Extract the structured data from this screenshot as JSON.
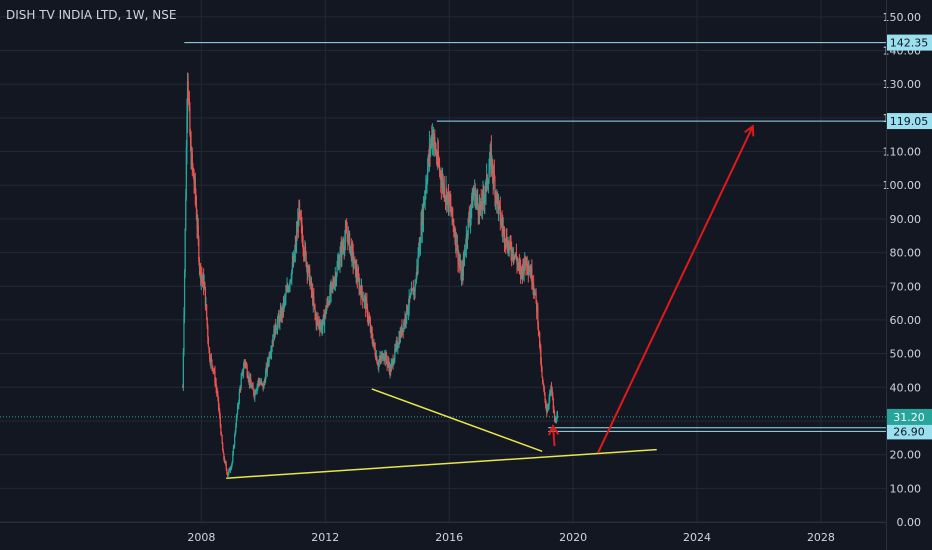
{
  "header": {
    "title": "DISH TV INDIA LTD, 1W, NSE"
  },
  "colors": {
    "background": "#131722",
    "grid": "#232834",
    "text": "#d1d4dc",
    "up": "#26a69a",
    "down": "#ef5350",
    "level": "#9be0ef",
    "trend": "#e8e64a",
    "arrow": "#e01a1a",
    "label_bg": "#9be0ef",
    "label_text": "#131722"
  },
  "chart_data": {
    "type": "candlestick",
    "title": "DISH TV INDIA LTD, 1W, NSE",
    "y_ticks": [
      "150.00",
      "140.00",
      "130.00",
      "120.00",
      "110.00",
      "100.00",
      "90.00",
      "80.00",
      "70.00",
      "60.00",
      "50.00",
      "40.00",
      "30.00",
      "20.00",
      "10.00",
      "0.00"
    ],
    "y_tick_values": [
      150,
      140,
      130,
      120,
      110,
      100,
      90,
      80,
      70,
      60,
      50,
      40,
      30,
      20,
      10,
      0
    ],
    "x_ticks": [
      "2008",
      "2012",
      "2016",
      "2020",
      "2024",
      "2028"
    ],
    "x_tick_values": [
      2008,
      2012,
      2016,
      2020,
      2024,
      2028
    ],
    "ylim": [
      0,
      155
    ],
    "xlim": [
      2001.5,
      2030.1
    ],
    "grid": true,
    "price_path": [
      [
        2007.4,
        40
      ],
      [
        2007.5,
        100
      ],
      [
        2007.55,
        135
      ],
      [
        2007.65,
        110
      ],
      [
        2007.8,
        98
      ],
      [
        2007.95,
        75
      ],
      [
        2008.1,
        70
      ],
      [
        2008.25,
        50
      ],
      [
        2008.4,
        45
      ],
      [
        2008.55,
        35
      ],
      [
        2008.7,
        20
      ],
      [
        2008.85,
        14
      ],
      [
        2009.0,
        18
      ],
      [
        2009.1,
        28
      ],
      [
        2009.25,
        40
      ],
      [
        2009.4,
        48
      ],
      [
        2009.55,
        42
      ],
      [
        2009.7,
        38
      ],
      [
        2009.85,
        42
      ],
      [
        2010.0,
        40
      ],
      [
        2010.2,
        50
      ],
      [
        2010.4,
        58
      ],
      [
        2010.6,
        62
      ],
      [
        2010.8,
        70
      ],
      [
        2011.0,
        78
      ],
      [
        2011.15,
        92
      ],
      [
        2011.3,
        82
      ],
      [
        2011.5,
        72
      ],
      [
        2011.7,
        60
      ],
      [
        2011.9,
        58
      ],
      [
        2012.1,
        66
      ],
      [
        2012.3,
        72
      ],
      [
        2012.5,
        80
      ],
      [
        2012.7,
        86
      ],
      [
        2012.9,
        78
      ],
      [
        2013.1,
        70
      ],
      [
        2013.3,
        65
      ],
      [
        2013.5,
        55
      ],
      [
        2013.7,
        47
      ],
      [
        2013.9,
        50
      ],
      [
        2014.1,
        45
      ],
      [
        2014.3,
        52
      ],
      [
        2014.5,
        58
      ],
      [
        2014.7,
        65
      ],
      [
        2014.9,
        70
      ],
      [
        2015.1,
        88
      ],
      [
        2015.3,
        105
      ],
      [
        2015.45,
        116
      ],
      [
        2015.6,
        108
      ],
      [
        2015.8,
        100
      ],
      [
        2016.0,
        95
      ],
      [
        2016.2,
        85
      ],
      [
        2016.4,
        72
      ],
      [
        2016.6,
        88
      ],
      [
        2016.8,
        98
      ],
      [
        2017.0,
        92
      ],
      [
        2017.2,
        100
      ],
      [
        2017.35,
        108
      ],
      [
        2017.5,
        98
      ],
      [
        2017.7,
        88
      ],
      [
        2017.9,
        82
      ],
      [
        2018.1,
        80
      ],
      [
        2018.3,
        74
      ],
      [
        2018.5,
        78
      ],
      [
        2018.7,
        72
      ],
      [
        2018.85,
        62
      ],
      [
        2019.0,
        42
      ],
      [
        2019.15,
        33
      ],
      [
        2019.3,
        40
      ],
      [
        2019.4,
        30
      ],
      [
        2019.5,
        31.2
      ]
    ],
    "levels": [
      {
        "value": 142.35,
        "label": "142.35",
        "x_start": 2007.45
      },
      {
        "value": 119.05,
        "label": "119.05",
        "x_start": 2015.6
      },
      {
        "value": 28.0,
        "label": "28.00",
        "x_start": 2019.2
      },
      {
        "value": 26.9,
        "label": "26.90",
        "x_start": 2019.2
      }
    ],
    "current_price": {
      "value": 31.2,
      "label": "31.20"
    },
    "trendlines": [
      {
        "from": [
          2008.8,
          13.0
        ],
        "to": [
          2022.7,
          21.5
        ]
      },
      {
        "from": [
          2013.5,
          39.5
        ],
        "to": [
          2019.0,
          21.0
        ]
      }
    ],
    "arrows": [
      {
        "from": [
          2020.8,
          20.5
        ],
        "to": [
          2025.8,
          117.5
        ]
      },
      {
        "from": [
          2019.4,
          22.5
        ],
        "to": [
          2019.35,
          28.5
        ]
      }
    ]
  }
}
